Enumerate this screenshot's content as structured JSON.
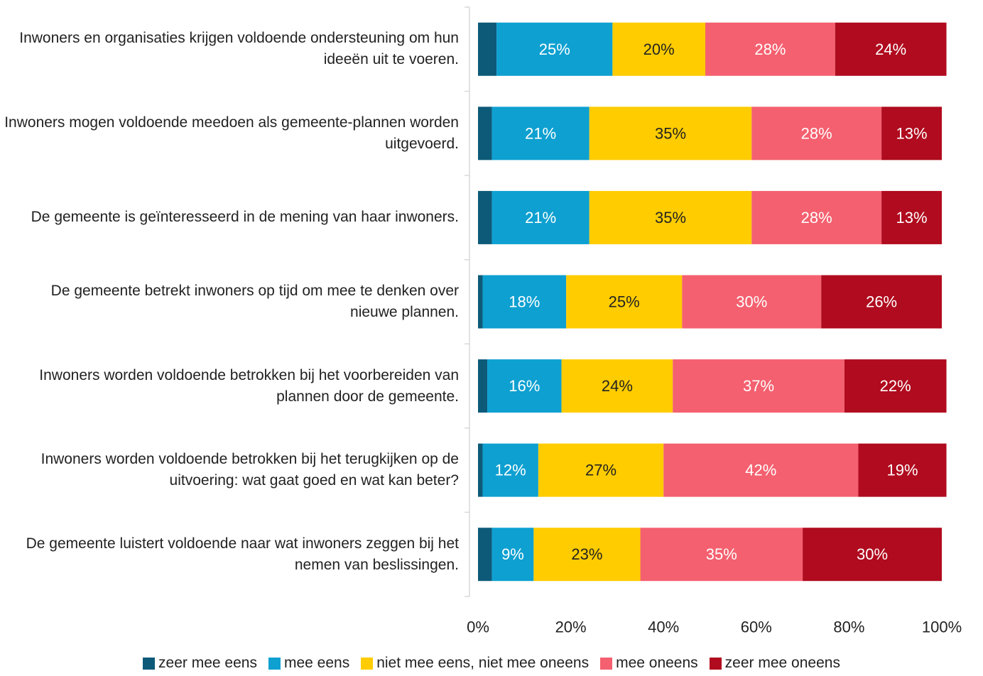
{
  "chart_data": {
    "type": "stacked_bar_horizontal",
    "categories": [
      "Inwoners en organisaties krijgen voldoende ondersteuning om hun ideeën uit te voeren.",
      "Inwoners mogen voldoende meedoen als gemeente-plannen worden uitgevoerd.",
      "De gemeente is geïnteresseerd in de mening van haar inwoners.",
      "De gemeente betrekt inwoners op tijd om mee te denken over nieuwe plannen.",
      "Inwoners worden voldoende betrokken bij het voorbereiden van plannen door de gemeente.",
      "Inwoners worden voldoende betrokken bij het terugkijken op de uitvoering: wat gaat goed en wat kan beter?",
      "De gemeente luistert voldoende naar wat inwoners zeggen bij het nemen van beslissingen."
    ],
    "series": [
      {
        "name": "zeer mee eens",
        "color": "#0d5a78",
        "values": [
          4,
          3,
          3,
          1,
          2,
          1,
          3
        ]
      },
      {
        "name": "mee eens",
        "color": "#0ea0d1",
        "values": [
          25,
          21,
          21,
          18,
          16,
          12,
          9
        ],
        "value_labels": [
          "25%",
          "21%",
          "21%",
          "18%",
          "16%",
          "12%",
          "9%"
        ]
      },
      {
        "name": "niet mee eens, niet mee oneens",
        "color": "#ffcc00",
        "values": [
          20,
          35,
          35,
          25,
          24,
          27,
          23
        ],
        "value_labels": [
          "20%",
          "35%",
          "35%",
          "25%",
          "24%",
          "27%",
          "23%"
        ]
      },
      {
        "name": "mee oneens",
        "color": "#f4606f",
        "values": [
          28,
          28,
          28,
          30,
          37,
          42,
          35
        ],
        "value_labels": [
          "28%",
          "28%",
          "28%",
          "30%",
          "37%",
          "42%",
          "35%"
        ]
      },
      {
        "name": "zeer mee oneens",
        "color": "#b00b1e",
        "values": [
          24,
          13,
          13,
          26,
          22,
          19,
          30
        ],
        "value_labels": [
          "24%",
          "13%",
          "13%",
          "26%",
          "22%",
          "19%",
          "30%"
        ]
      }
    ],
    "xlim": [
      0,
      100
    ],
    "xticks": [
      {
        "value": 0,
        "label": "0%"
      },
      {
        "value": 20,
        "label": "20%"
      },
      {
        "value": 40,
        "label": "40%"
      },
      {
        "value": 60,
        "label": "60%"
      },
      {
        "value": 80,
        "label": "80%"
      },
      {
        "value": 100,
        "label": "100%"
      }
    ],
    "legend": "bottom"
  }
}
